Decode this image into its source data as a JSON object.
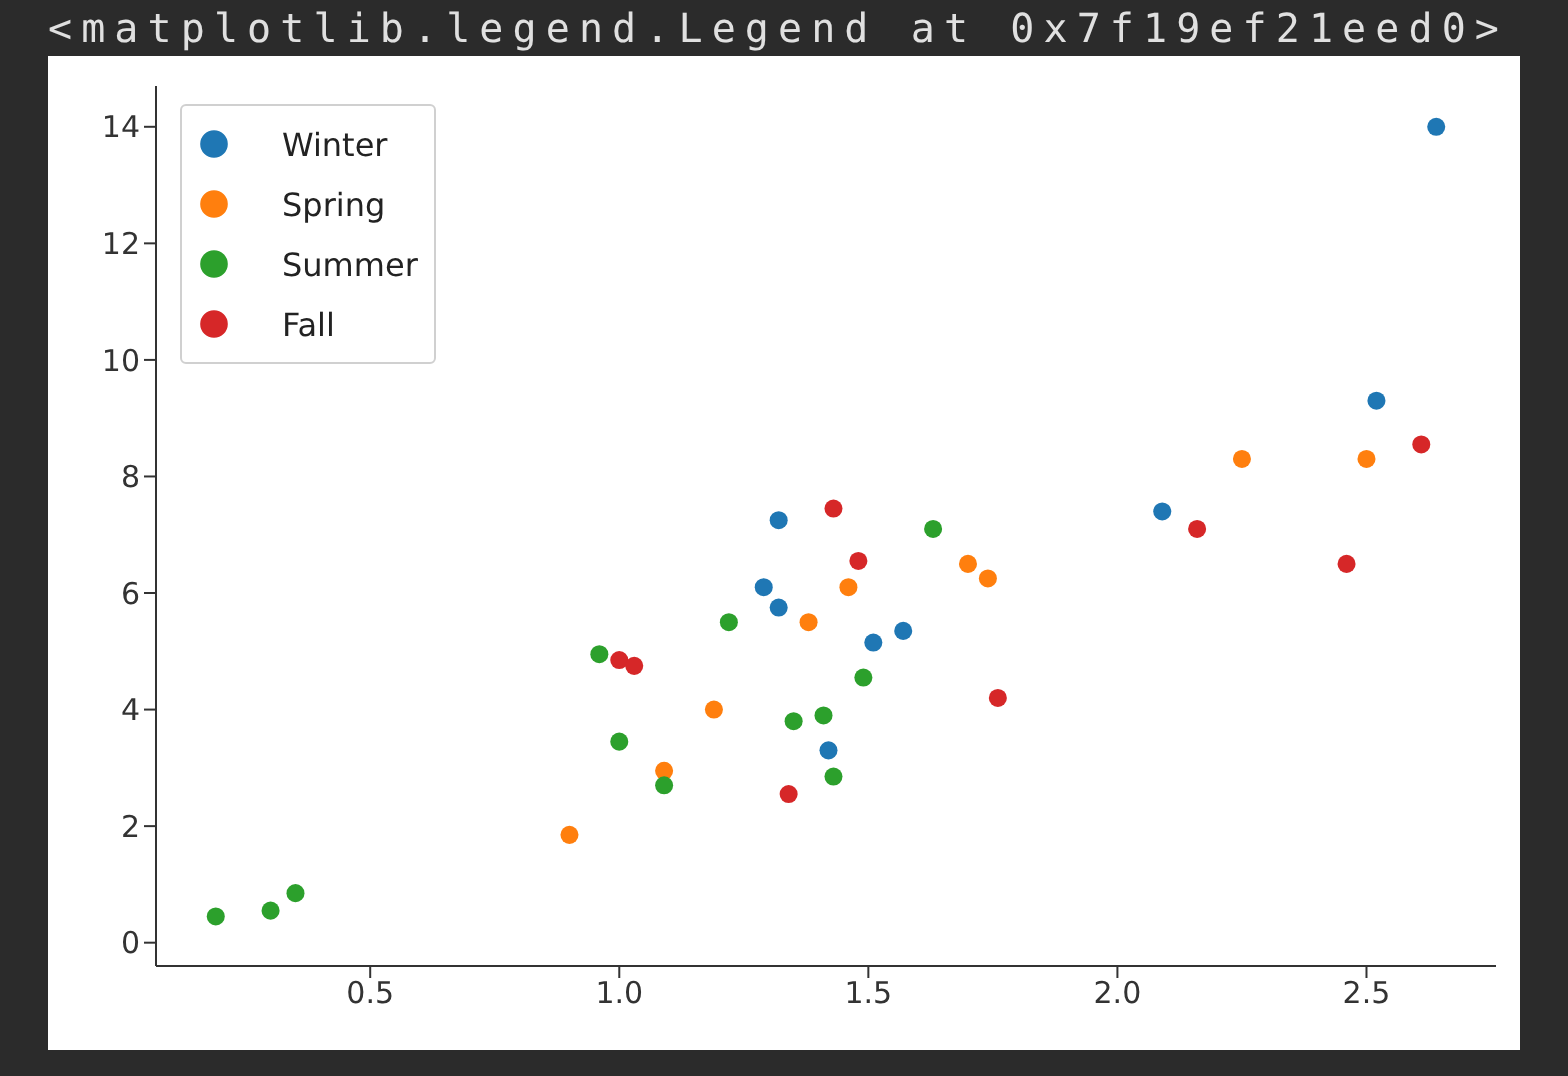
{
  "chart_data": {
    "type": "scatter",
    "annotations": [
      "<matplotlib.legend.Legend at 0x7f19ef21eed0>"
    ],
    "xlim": [
      0.07,
      2.76
    ],
    "ylim": [
      -0.4,
      14.7
    ],
    "xticks": [
      0.5,
      {
        "value": 1,
        "label": "1.0"
      },
      1.5,
      {
        "value": 2,
        "label": "2.0"
      },
      2.5
    ],
    "yticks": [
      0,
      2,
      4,
      6,
      8,
      10,
      12,
      14
    ],
    "legend": "top left",
    "marker": "circle",
    "grid": false,
    "series": [
      {
        "name": "Winter",
        "color": "#1f77b4",
        "x": [
          2.64,
          2.52,
          2.09,
          1.32,
          1.29,
          1.32,
          1.51,
          1.57,
          1.42
        ],
        "values": [
          14.0,
          9.3,
          7.4,
          7.25,
          6.1,
          5.75,
          5.15,
          5.35,
          3.3
        ]
      },
      {
        "name": "Spring",
        "color": "#ff7f0e",
        "x": [
          0.9,
          1.09,
          1.19,
          1.38,
          1.46,
          1.7,
          1.74,
          2.25,
          2.5
        ],
        "values": [
          1.85,
          2.95,
          4.0,
          5.5,
          6.1,
          6.5,
          6.25,
          8.3,
          8.3
        ]
      },
      {
        "name": "Summer",
        "color": "#2ca02c",
        "x": [
          0.19,
          0.3,
          0.35,
          0.96,
          1.0,
          1.09,
          1.22,
          1.35,
          1.41,
          1.43,
          1.49,
          1.63
        ],
        "values": [
          0.45,
          0.55,
          0.85,
          4.95,
          3.45,
          2.7,
          5.5,
          3.8,
          3.9,
          2.85,
          4.55,
          7.1
        ]
      },
      {
        "name": "Fall",
        "color": "#d62728",
        "x": [
          1.0,
          1.03,
          1.34,
          1.43,
          1.48,
          1.76,
          2.16,
          2.46,
          2.61
        ],
        "values": [
          4.85,
          4.75,
          2.55,
          7.45,
          6.55,
          4.2,
          7.1,
          6.5,
          8.55
        ]
      }
    ]
  }
}
